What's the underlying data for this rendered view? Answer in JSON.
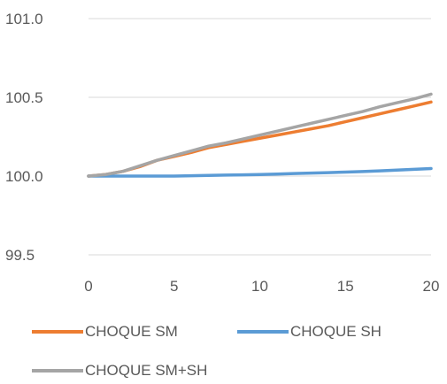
{
  "chart_data": {
    "type": "line",
    "title": "",
    "xlabel": "",
    "ylabel": "",
    "xlim": [
      0,
      20
    ],
    "ylim": [
      99.5,
      101.0
    ],
    "x_ticks": [
      0,
      5,
      10,
      15,
      20
    ],
    "y_ticks": [
      99.5,
      100.0,
      100.5,
      101.0
    ],
    "y_tick_labels": [
      "99.5",
      "100.0",
      "100.5",
      "101.0"
    ],
    "grid": "horizontal",
    "legend_position": "bottom",
    "x": [
      0,
      1,
      2,
      3,
      4,
      5,
      6,
      7,
      8,
      9,
      10,
      11,
      12,
      13,
      14,
      15,
      16,
      17,
      18,
      19,
      20
    ],
    "series": [
      {
        "name": "CHOQUE SM",
        "color": "#ED7D31",
        "values": [
          100.0,
          100.01,
          100.03,
          100.06,
          100.1,
          100.125,
          100.15,
          100.18,
          100.2,
          100.22,
          100.24,
          100.26,
          100.28,
          100.3,
          100.32,
          100.345,
          100.37,
          100.395,
          100.42,
          100.445,
          100.47
        ]
      },
      {
        "name": "CHOQUE SH",
        "color": "#5B9BD5",
        "values": [
          100.0,
          100.0,
          100.0,
          100.0,
          100.0,
          100.0,
          100.002,
          100.004,
          100.006,
          100.008,
          100.01,
          100.013,
          100.016,
          100.019,
          100.022,
          100.025,
          100.029,
          100.033,
          100.038,
          100.043,
          100.048
        ]
      },
      {
        "name": "CHOQUE SM+SH",
        "color": "#A5A5A5",
        "values": [
          100.0,
          100.01,
          100.03,
          100.065,
          100.1,
          100.13,
          100.16,
          100.19,
          100.21,
          100.235,
          100.26,
          100.285,
          100.31,
          100.335,
          100.36,
          100.385,
          100.41,
          100.44,
          100.465,
          100.49,
          100.52
        ]
      }
    ]
  }
}
